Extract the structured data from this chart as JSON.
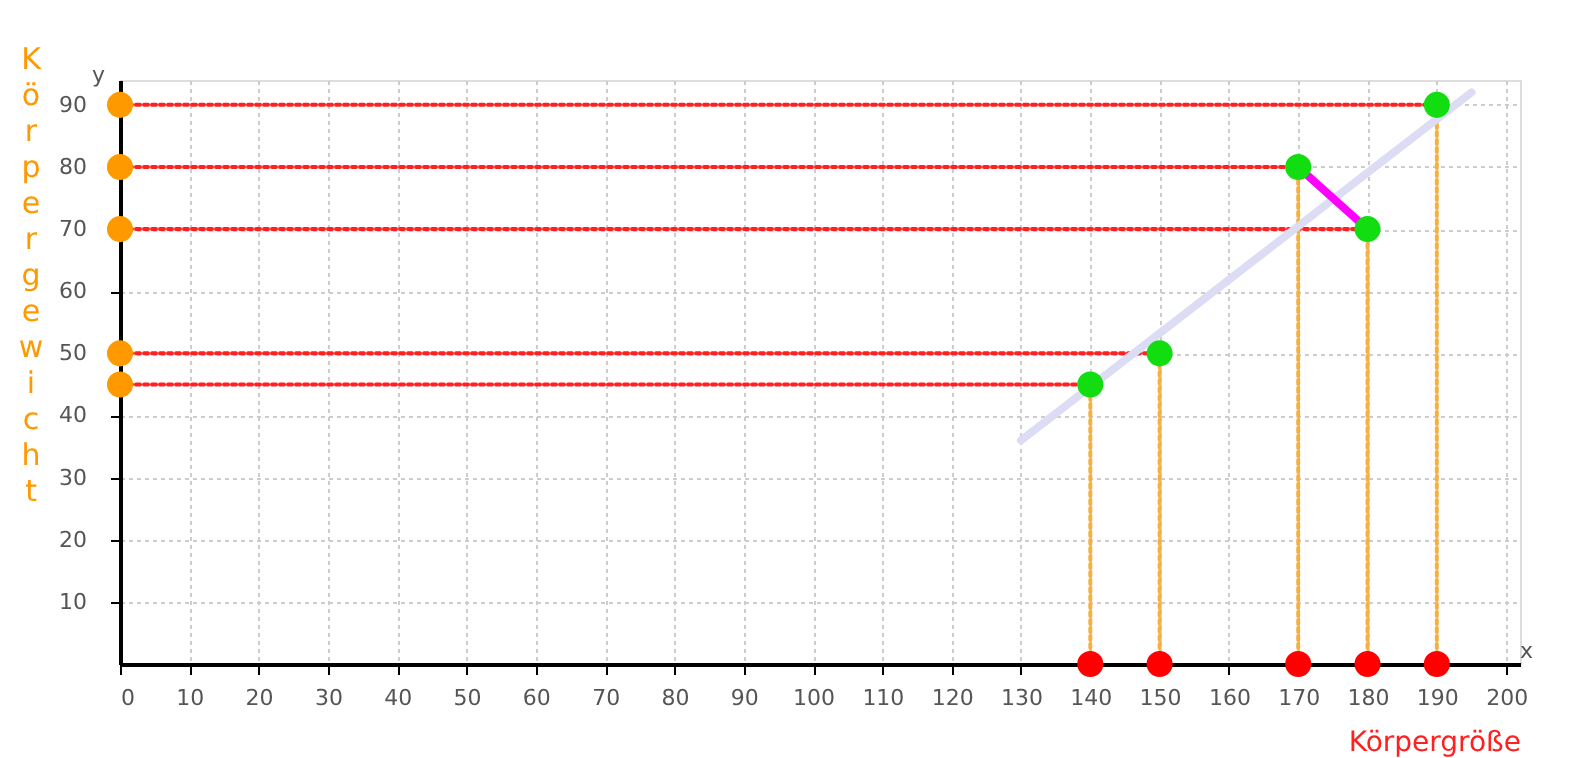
{
  "chart_data": {
    "type": "scatter",
    "xlabel": "Körpergröße",
    "ylabel": "Körpergewicht",
    "xlim": [
      0,
      202
    ],
    "ylim": [
      0,
      94
    ],
    "xticks": [
      0,
      10,
      20,
      30,
      40,
      50,
      60,
      70,
      80,
      90,
      100,
      110,
      120,
      130,
      140,
      150,
      160,
      170,
      180,
      190,
      200
    ],
    "yticks": [
      10,
      20,
      30,
      40,
      50,
      60,
      70,
      80,
      90
    ],
    "grid": true,
    "annotations": [
      "y",
      "x"
    ],
    "series": [
      {
        "type": "line",
        "line_style": "dotted",
        "color": "#ff2020",
        "x": [
          0,
          140
        ],
        "values": [
          45,
          45
        ]
      },
      {
        "type": "line",
        "line_style": "dotted",
        "color": "#ff2020",
        "x": [
          0,
          150
        ],
        "values": [
          50,
          50
        ]
      },
      {
        "type": "line",
        "line_style": "dotted",
        "color": "#ff2020",
        "x": [
          0,
          180
        ],
        "values": [
          70,
          70
        ]
      },
      {
        "type": "line",
        "line_style": "dotted",
        "color": "#ff2020",
        "x": [
          0,
          170
        ],
        "values": [
          80,
          80
        ]
      },
      {
        "type": "line",
        "line_style": "dotted",
        "color": "#ff2020",
        "x": [
          0,
          190
        ],
        "values": [
          90,
          90
        ]
      },
      {
        "type": "line",
        "line_style": "dotted",
        "color": "#f5b041",
        "x": [
          140,
          140
        ],
        "values": [
          0,
          45
        ]
      },
      {
        "type": "line",
        "line_style": "dotted",
        "color": "#f5b041",
        "x": [
          150,
          150
        ],
        "values": [
          0,
          50
        ]
      },
      {
        "type": "line",
        "line_style": "dotted",
        "color": "#f5b041",
        "x": [
          170,
          170
        ],
        "values": [
          0,
          80
        ]
      },
      {
        "type": "line",
        "line_style": "dotted",
        "color": "#f5b041",
        "x": [
          180,
          180
        ],
        "values": [
          0,
          70
        ]
      },
      {
        "type": "line",
        "line_style": "dotted",
        "color": "#f5b041",
        "x": [
          190,
          190
        ],
        "values": [
          0,
          90
        ]
      },
      {
        "type": "line",
        "line_style": "solid",
        "color": "#dcdcf5",
        "x": [
          130,
          195
        ],
        "values": [
          36,
          92
        ]
      },
      {
        "type": "line",
        "line_style": "solid",
        "color": "#ff00ff",
        "x": [
          170,
          180
        ],
        "values": [
          80,
          70
        ]
      },
      {
        "marker": "circle",
        "color": "#ff9900",
        "x": [
          0,
          0,
          0,
          0,
          0
        ],
        "values": [
          45,
          50,
          70,
          80,
          90
        ]
      },
      {
        "marker": "circle",
        "color": "#ff0000",
        "x": [
          140,
          150,
          170,
          180,
          190
        ],
        "values": [
          0,
          0,
          0,
          0,
          0
        ]
      },
      {
        "marker": "circle",
        "color": "#11dd11",
        "x": [
          140,
          150,
          170,
          180,
          190
        ],
        "values": [
          45,
          50,
          80,
          70,
          90
        ]
      }
    ]
  }
}
